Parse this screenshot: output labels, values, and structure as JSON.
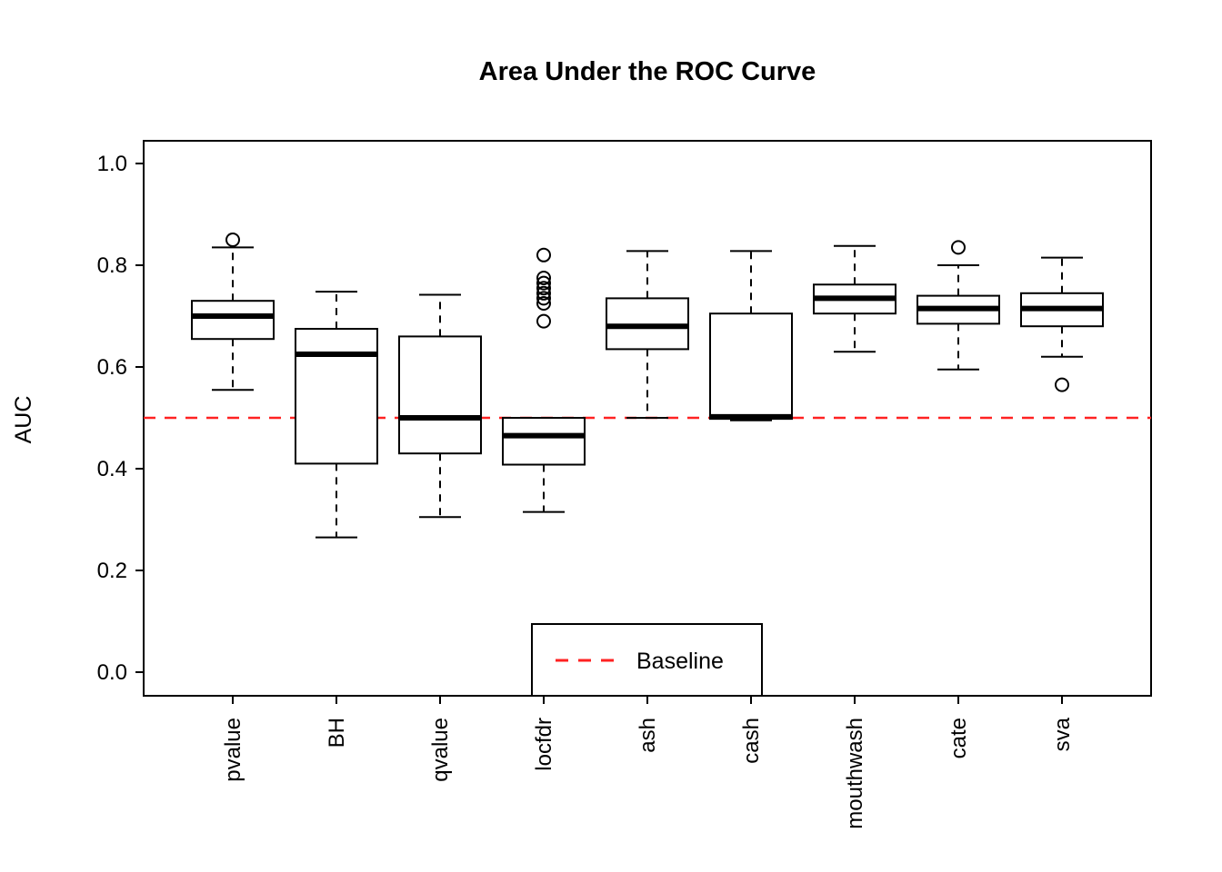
{
  "chart_data": {
    "type": "boxplot",
    "title": "Area Under the ROC Curve",
    "ylabel": "AUC",
    "xlabel": "",
    "ylim": [
      0.0,
      1.0
    ],
    "ytick_labels": [
      "0.0",
      "0.2",
      "0.4",
      "0.6",
      "0.8",
      "1.0"
    ],
    "yticks": [
      0.0,
      0.2,
      0.4,
      0.6,
      0.8,
      1.0
    ],
    "grid": false,
    "legend_position": "bottom-center",
    "baseline": {
      "value": 0.5,
      "label": "Baseline",
      "color": "#FF2222",
      "style": "dashed"
    },
    "categories": [
      "pvalue",
      "BH",
      "qvalue",
      "locfdr",
      "ash",
      "cash",
      "mouthwash",
      "cate",
      "sva"
    ],
    "boxes": [
      {
        "category": "pvalue",
        "whisker_low": 0.555,
        "q1": 0.655,
        "median": 0.7,
        "q3": 0.73,
        "whisker_high": 0.835,
        "outliers": [
          0.85
        ]
      },
      {
        "category": "BH",
        "whisker_low": 0.265,
        "q1": 0.41,
        "median": 0.625,
        "q3": 0.675,
        "whisker_high": 0.748,
        "outliers": []
      },
      {
        "category": "qvalue",
        "whisker_low": 0.305,
        "q1": 0.43,
        "median": 0.5,
        "q3": 0.66,
        "whisker_high": 0.742,
        "outliers": []
      },
      {
        "category": "locfdr",
        "whisker_low": 0.315,
        "q1": 0.408,
        "median": 0.465,
        "q3": 0.5,
        "whisker_high": 0.5,
        "outliers": [
          0.69,
          0.725,
          0.735,
          0.745,
          0.755,
          0.765,
          0.775,
          0.82
        ]
      },
      {
        "category": "ash",
        "whisker_low": 0.5,
        "q1": 0.635,
        "median": 0.68,
        "q3": 0.735,
        "whisker_high": 0.828,
        "outliers": []
      },
      {
        "category": "cash",
        "whisker_low": 0.495,
        "q1": 0.498,
        "median": 0.502,
        "q3": 0.705,
        "whisker_high": 0.828,
        "outliers": []
      },
      {
        "category": "mouthwash",
        "whisker_low": 0.63,
        "q1": 0.705,
        "median": 0.735,
        "q3": 0.762,
        "whisker_high": 0.838,
        "outliers": []
      },
      {
        "category": "cate",
        "whisker_low": 0.595,
        "q1": 0.685,
        "median": 0.715,
        "q3": 0.74,
        "whisker_high": 0.8,
        "outliers": [
          0.835
        ]
      },
      {
        "category": "sva",
        "whisker_low": 0.62,
        "q1": 0.68,
        "median": 0.715,
        "q3": 0.745,
        "whisker_high": 0.815,
        "outliers": [
          0.565
        ]
      }
    ]
  }
}
